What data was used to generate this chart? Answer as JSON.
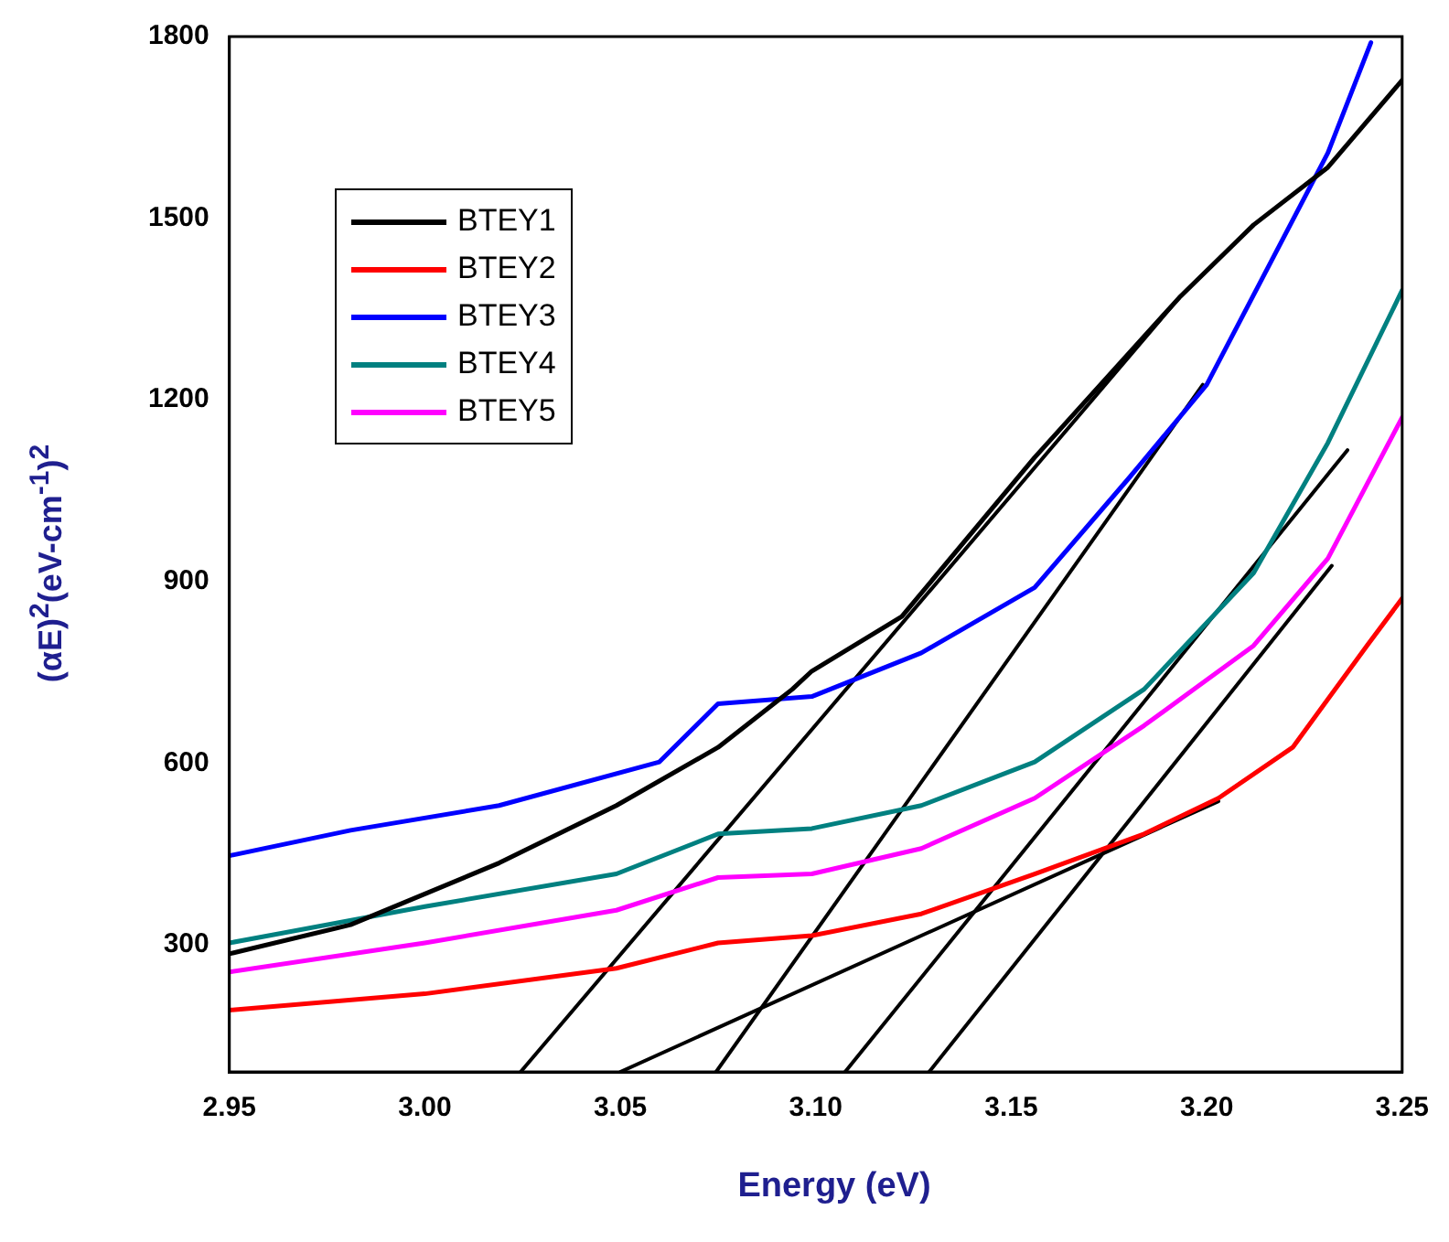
{
  "chart_data": {
    "type": "line",
    "xlabel": "Energy (eV)",
    "ylabel": "(αE)$^{2}$(eV-cm$^{-1}$)$^{2}$",
    "xlim": [
      2.95,
      3.25
    ],
    "ylim": [
      90,
      1800
    ],
    "xticks": [
      2.95,
      {
        "value": 3,
        "label": "3.00"
      },
      3.05,
      {
        "value": 3.1,
        "label": "3.10"
      },
      3.15,
      {
        "value": 3.2,
        "label": "3.20"
      },
      3.25
    ],
    "yticks": [
      300,
      600,
      900,
      1200,
      1500,
      1800
    ],
    "grid": false,
    "legend": "top left",
    "marker": "none",
    "line_style": "solid",
    "series": [
      {
        "name": "BTEY1",
        "color": "#000000",
        "x": [
          2.95,
          2.981,
          3.019,
          3.049,
          3.075,
          3.094,
          3.099,
          3.122,
          3.156,
          3.193,
          3.212,
          3.231,
          3.25
        ],
        "values": [
          285,
          333,
          435,
          530,
          626,
          722,
          752,
          842,
          1105,
          1369,
          1489,
          1584,
          1728
        ]
      },
      {
        "name": "BTEY2",
        "color": "#ff0000",
        "x": [
          2.95,
          3.0,
          3.049,
          3.075,
          3.099,
          3.127,
          3.156,
          3.184,
          3.203,
          3.222,
          3.241,
          3.25
        ],
        "values": [
          192,
          219,
          261,
          303,
          315,
          351,
          417,
          483,
          542,
          626,
          794,
          872
        ]
      },
      {
        "name": "BTEY3",
        "color": "#0000ff",
        "x": [
          2.95,
          2.981,
          3.019,
          3.06,
          3.075,
          3.099,
          3.127,
          3.156,
          3.18,
          3.2,
          3.231,
          3.242
        ],
        "values": [
          447,
          489,
          530,
          602,
          698,
          710,
          782,
          890,
          1070,
          1225,
          1608,
          1790
        ]
      },
      {
        "name": "BTEY4",
        "color": "#008080",
        "x": [
          2.95,
          3.0,
          3.049,
          3.075,
          3.099,
          3.127,
          3.156,
          3.184,
          3.212,
          3.231,
          3.25
        ],
        "values": [
          303,
          363,
          417,
          483,
          492,
          530,
          602,
          722,
          914,
          1129,
          1381
        ]
      },
      {
        "name": "BTEY5",
        "color": "#ff00ff",
        "x": [
          2.95,
          3.0,
          3.049,
          3.075,
          3.099,
          3.127,
          3.156,
          3.184,
          3.212,
          3.231,
          3.25
        ],
        "values": [
          255,
          303,
          357,
          411,
          417,
          459,
          542,
          662,
          794,
          938,
          1171
        ]
      },
      {
        "type": "line",
        "color": "#000000",
        "x": [
          3.0245,
          3.193
        ],
        "values": [
          90,
          1369
        ]
      },
      {
        "type": "line",
        "color": "#000000",
        "x": [
          3.0745,
          3.199
        ],
        "values": [
          90,
          1225
        ]
      },
      {
        "type": "line",
        "color": "#000000",
        "x": [
          3.05,
          3.203
        ],
        "values": [
          90,
          537
        ]
      },
      {
        "type": "line",
        "color": "#000000",
        "x": [
          3.1075,
          3.236
        ],
        "values": [
          90,
          1117
        ]
      },
      {
        "type": "line",
        "color": "#000000",
        "x": [
          3.129,
          3.232
        ],
        "values": [
          90,
          926
        ]
      }
    ]
  }
}
